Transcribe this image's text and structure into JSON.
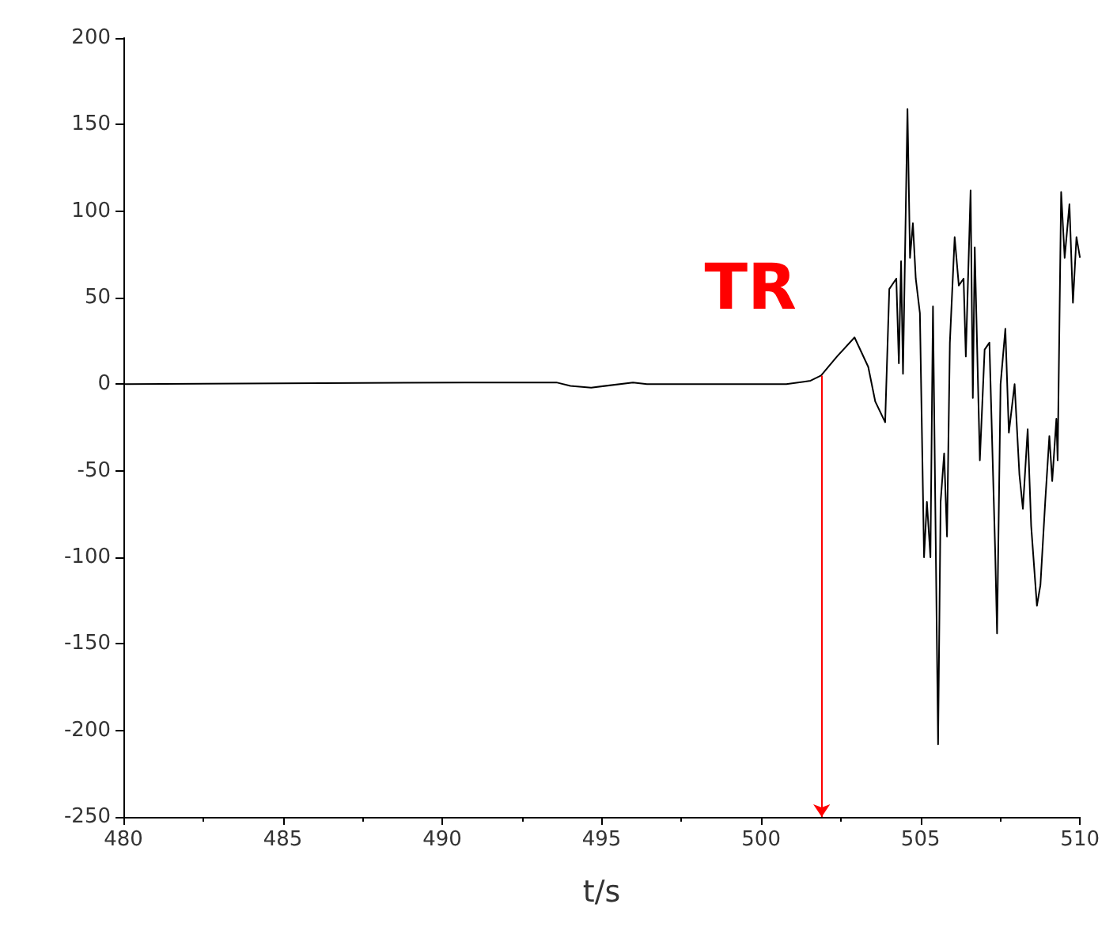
{
  "chart_data": {
    "type": "line",
    "xlabel": "t/s",
    "xlim": [
      480,
      510
    ],
    "xticks": [
      480,
      485,
      490,
      495,
      500,
      505,
      510
    ],
    "ylim": [
      -250,
      200
    ],
    "yticks": [
      -250,
      -200,
      -150,
      -100,
      -50,
      0,
      50,
      100,
      150,
      200
    ],
    "grid": false,
    "marker": "none",
    "line_style": "solid",
    "annotations": [
      {
        "text": "TR",
        "x": 501.9,
        "y": 5
      }
    ],
    "series": [
      {
        "color": "#000000",
        "x": [
          480,
          490.7,
          493.58,
          494.02,
          494.67,
          495.98,
          496.42,
          500.79,
          501.55,
          501.88,
          502.38,
          502.93,
          503.36,
          503.58,
          503.89,
          504.02,
          504.24,
          504.32,
          504.39,
          504.45,
          504.59,
          504.67,
          504.76,
          504.85,
          504.98,
          505.11,
          505.2,
          505.31,
          505.39,
          505.55,
          505.63,
          505.74,
          505.83,
          505.92,
          506.07,
          506.2,
          506.35,
          506.42,
          506.57,
          506.64,
          506.7,
          506.86,
          507.01,
          507.16,
          507.34,
          507.4,
          507.51,
          507.66,
          507.77,
          507.95,
          508.1,
          508.21,
          508.36,
          508.47,
          508.65,
          508.76,
          508.91,
          509.04,
          509.13,
          509.26,
          509.3,
          509.41,
          509.52,
          509.67,
          509.78,
          509.89,
          510
        ],
        "values": [
          0,
          1,
          1,
          -1,
          -2,
          1,
          0,
          0,
          2,
          5,
          16,
          27,
          10,
          -10,
          -22,
          55,
          61,
          12,
          71,
          6,
          159,
          73,
          93,
          61,
          41,
          -100,
          -68,
          -100,
          45,
          -208,
          -68,
          -40,
          -88,
          24,
          85,
          57,
          61,
          16,
          112,
          -8,
          79,
          -44,
          20,
          24,
          -96,
          -144,
          0,
          32,
          -28,
          0,
          -52,
          -72,
          -26,
          -82,
          -128,
          -116,
          -68,
          -30,
          -56,
          -20,
          -44,
          111,
          73,
          104,
          47,
          85,
          73
        ]
      }
    ]
  }
}
